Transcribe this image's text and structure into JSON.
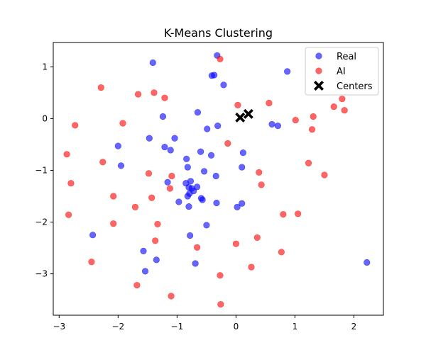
{
  "chart_data": {
    "type": "scatter",
    "title": "K-Means Clustering",
    "xlabel": "",
    "ylabel": "",
    "xlim": [
      -3.1,
      2.5
    ],
    "ylim": [
      -3.8,
      1.47
    ],
    "xticks": [
      -3,
      -2,
      -1,
      0,
      1,
      2
    ],
    "yticks": [
      1,
      0,
      -1,
      -2,
      -3
    ],
    "grid": false,
    "legend_position": "top-right",
    "colors": {
      "Real": "#0000ff",
      "AI": "#ff0000",
      "Centers": "#000000"
    },
    "series": [
      {
        "name": "Real",
        "marker": "circle",
        "alpha": 0.6,
        "points": [
          [
            -0.32,
            1.22
          ],
          [
            -1.41,
            1.08
          ],
          [
            -0.37,
            0.84
          ],
          [
            -0.41,
            0.83
          ],
          [
            0.87,
            0.91
          ],
          [
            -0.21,
            0.65
          ],
          [
            -1.24,
            0.04
          ],
          [
            -0.65,
            0.12
          ],
          [
            -0.49,
            -0.2
          ],
          [
            -0.31,
            -0.14
          ],
          [
            0.61,
            -0.11
          ],
          [
            0.71,
            -0.14
          ],
          [
            -1.47,
            -0.38
          ],
          [
            -1.04,
            -0.38
          ],
          [
            -2.0,
            -0.53
          ],
          [
            -1.21,
            -0.55
          ],
          [
            -1.11,
            -0.61
          ],
          [
            -0.6,
            -0.64
          ],
          [
            -0.42,
            -0.71
          ],
          [
            0.12,
            -0.66
          ],
          [
            -0.84,
            -0.78
          ],
          [
            -1.95,
            -0.91
          ],
          [
            -0.82,
            -0.94
          ],
          [
            0.1,
            -0.94
          ],
          [
            -0.54,
            -1.02
          ],
          [
            -0.34,
            -1.11
          ],
          [
            -1.16,
            -1.23
          ],
          [
            -0.85,
            -1.25
          ],
          [
            -0.77,
            -1.21
          ],
          [
            -0.8,
            -1.33
          ],
          [
            -0.75,
            -1.35
          ],
          [
            -0.66,
            -1.32
          ],
          [
            -0.72,
            -1.4
          ],
          [
            -0.79,
            -1.45
          ],
          [
            -0.82,
            -1.5
          ],
          [
            -0.59,
            -1.54
          ],
          [
            -0.57,
            -1.57
          ],
          [
            -0.97,
            -1.61
          ],
          [
            -0.33,
            -1.63
          ],
          [
            0.1,
            -1.64
          ],
          [
            -0.8,
            -1.7
          ],
          [
            0.02,
            -1.71
          ],
          [
            -0.5,
            -2.06
          ],
          [
            -2.43,
            -2.25
          ],
          [
            -0.78,
            -2.26
          ],
          [
            -1.57,
            -2.56
          ],
          [
            -1.35,
            -2.73
          ],
          [
            -0.69,
            -2.8
          ],
          [
            -1.54,
            -2.95
          ],
          [
            2.22,
            -2.78
          ]
        ]
      },
      {
        "name": "AI",
        "marker": "circle",
        "alpha": 0.6,
        "points": [
          [
            -0.27,
            1.15
          ],
          [
            -2.29,
            0.6
          ],
          [
            -1.39,
            0.5
          ],
          [
            -1.66,
            0.47
          ],
          [
            -1.21,
            0.4
          ],
          [
            0.03,
            0.26
          ],
          [
            0.56,
            0.3
          ],
          [
            1.66,
            0.23
          ],
          [
            1.8,
            0.38
          ],
          [
            1.84,
            0.16
          ],
          [
            1.31,
            0.04
          ],
          [
            1.01,
            -0.03
          ],
          [
            -2.73,
            -0.13
          ],
          [
            -1.92,
            -0.09
          ],
          [
            1.29,
            -0.21
          ],
          [
            -0.14,
            -0.48
          ],
          [
            -2.87,
            -0.69
          ],
          [
            -2.26,
            -0.84
          ],
          [
            1.23,
            -0.86
          ],
          [
            -1.48,
            -1.06
          ],
          [
            0.39,
            -1.04
          ],
          [
            -1.09,
            -1.11
          ],
          [
            1.5,
            -1.09
          ],
          [
            -2.8,
            -1.25
          ],
          [
            0.43,
            -1.28
          ],
          [
            -1.12,
            -1.35
          ],
          [
            -2.08,
            -1.5
          ],
          [
            -1.43,
            -1.53
          ],
          [
            -1.71,
            -1.71
          ],
          [
            -2.84,
            -1.86
          ],
          [
            0.8,
            -1.85
          ],
          [
            1.05,
            -1.84
          ],
          [
            -2.08,
            -2.03
          ],
          [
            -1.33,
            -2.04
          ],
          [
            0.36,
            -2.3
          ],
          [
            -1.37,
            -2.36
          ],
          [
            0.0,
            -2.42
          ],
          [
            -0.66,
            -2.49
          ],
          [
            0.77,
            -2.58
          ],
          [
            -2.45,
            -2.77
          ],
          [
            0.26,
            -2.87
          ],
          [
            -0.27,
            -3.03
          ],
          [
            -1.68,
            -3.22
          ],
          [
            -1.1,
            -3.43
          ],
          [
            -0.26,
            -3.59
          ]
        ]
      },
      {
        "name": "Centers",
        "marker": "X",
        "alpha": 1,
        "points": [
          [
            0.07,
            0.02
          ],
          [
            0.21,
            0.09
          ]
        ]
      }
    ]
  }
}
